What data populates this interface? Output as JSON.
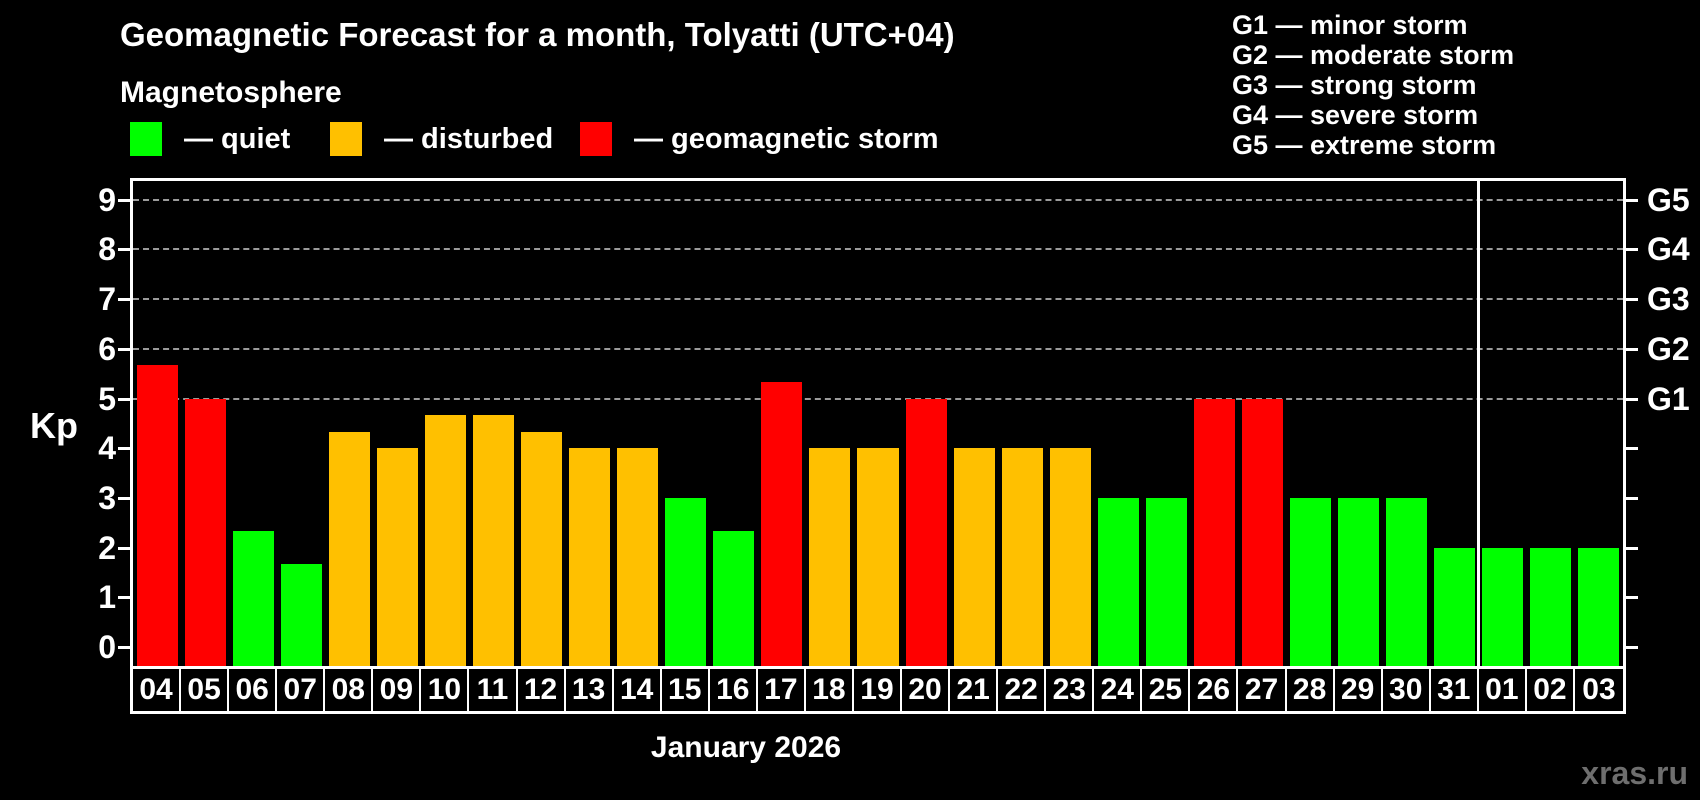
{
  "legend": {
    "title": "Magnetosphere",
    "items": [
      {
        "key": "quiet",
        "label": "— quiet",
        "color": "#00ff00"
      },
      {
        "key": "disturbed",
        "label": "— disturbed",
        "color": "#ffc000"
      },
      {
        "key": "storm",
        "label": "— geomagnetic storm",
        "color": "#ff0000"
      }
    ]
  },
  "g_legend": {
    "items": [
      "G1 — minor storm",
      "G2 — moderate storm",
      "G3 — strong storm",
      "G4 — severe storm",
      "G5 — extreme storm"
    ]
  },
  "watermark": "xras.ru",
  "chart_data": {
    "type": "bar",
    "title": "Geomagnetic Forecast for a month, Tolyatti (UTC+04)",
    "ylabel": "Kp",
    "xlabel": "January 2026",
    "ylim": [
      0,
      9
    ],
    "yticks": [
      0,
      1,
      2,
      3,
      4,
      5,
      6,
      7,
      8,
      9
    ],
    "gridlines_at": [
      5,
      6,
      7,
      8,
      9
    ],
    "grid": "dashed, only at storm levels G1–G5",
    "right_axis_labels": [
      {
        "label": "G1",
        "kp": 5
      },
      {
        "label": "G2",
        "kp": 6
      },
      {
        "label": "G3",
        "kp": 7
      },
      {
        "label": "G4",
        "kp": 8
      },
      {
        "label": "G5",
        "kp": 9
      }
    ],
    "categories": [
      "04",
      "05",
      "06",
      "07",
      "08",
      "09",
      "10",
      "11",
      "12",
      "13",
      "14",
      "15",
      "16",
      "17",
      "18",
      "19",
      "20",
      "21",
      "22",
      "23",
      "24",
      "25",
      "26",
      "27",
      "28",
      "29",
      "30",
      "31",
      "01",
      "02",
      "03"
    ],
    "values": [
      5.67,
      5,
      2.33,
      1.67,
      4.33,
      4,
      4.67,
      4.67,
      4.33,
      4,
      4,
      3,
      2.33,
      5.33,
      4,
      4,
      5,
      4,
      4,
      4,
      3,
      3,
      5,
      5,
      3,
      3,
      3,
      2,
      2,
      2,
      2
    ],
    "levels": [
      "storm",
      "storm",
      "quiet",
      "quiet",
      "disturbed",
      "disturbed",
      "disturbed",
      "disturbed",
      "disturbed",
      "disturbed",
      "disturbed",
      "quiet",
      "quiet",
      "storm",
      "disturbed",
      "disturbed",
      "storm",
      "disturbed",
      "disturbed",
      "disturbed",
      "quiet",
      "quiet",
      "storm",
      "storm",
      "quiet",
      "quiet",
      "quiet",
      "quiet",
      "quiet",
      "quiet",
      "quiet"
    ],
    "level_colors": {
      "quiet": "#00ff00",
      "disturbed": "#ffc000",
      "storm": "#ff0000"
    },
    "month_separator_after_index": 27
  }
}
